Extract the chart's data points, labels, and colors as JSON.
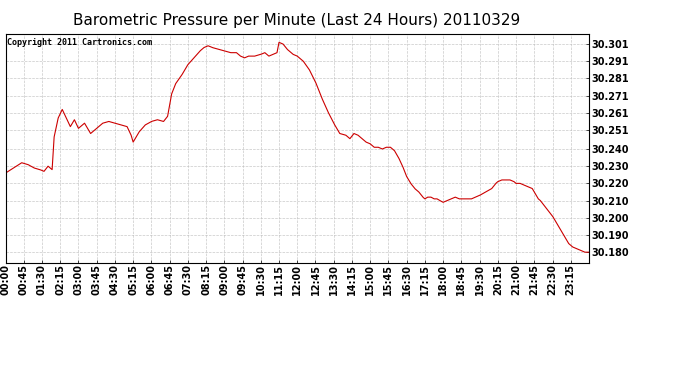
{
  "title": "Barometric Pressure per Minute (Last 24 Hours) 20110329",
  "copyright": "Copyright 2011 Cartronics.com",
  "line_color": "#cc0000",
  "bg_color": "#ffffff",
  "plot_bg_color": "#ffffff",
  "grid_color": "#bbbbbb",
  "yticks": [
    30.18,
    30.19,
    30.2,
    30.21,
    30.22,
    30.23,
    30.24,
    30.251,
    30.261,
    30.271,
    30.281,
    30.291,
    30.301
  ],
  "ytick_labels": [
    "30.180",
    "30.190",
    "30.200",
    "30.210",
    "30.220",
    "30.230",
    "30.240",
    "30.251",
    "30.261",
    "30.271",
    "30.281",
    "30.291",
    "30.301"
  ],
  "xtick_labels": [
    "00:00",
    "00:45",
    "01:30",
    "02:15",
    "03:00",
    "03:45",
    "04:30",
    "05:15",
    "06:00",
    "06:45",
    "07:30",
    "08:15",
    "09:00",
    "09:45",
    "10:30",
    "11:15",
    "12:00",
    "12:45",
    "13:30",
    "14:15",
    "15:00",
    "15:45",
    "16:30",
    "17:15",
    "18:00",
    "18:45",
    "19:30",
    "20:15",
    "21:00",
    "21:45",
    "22:30",
    "23:15"
  ],
  "ylim": [
    30.174,
    30.307
  ],
  "xlim": [
    0,
    1439
  ],
  "title_fontsize": 11,
  "tick_fontsize": 7,
  "copyright_fontsize": 6
}
